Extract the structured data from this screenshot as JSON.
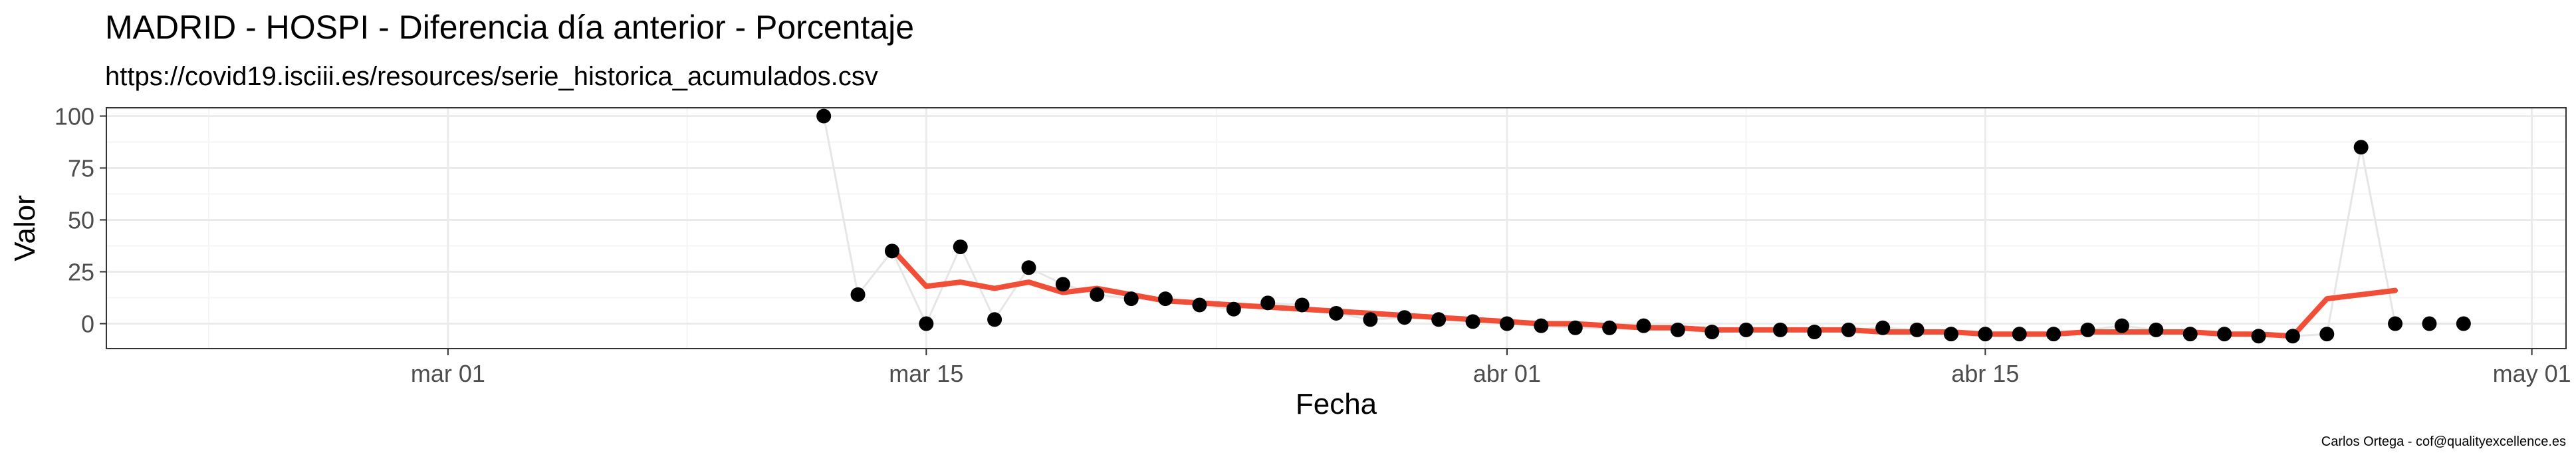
{
  "chart_data": {
    "type": "scatter",
    "title": "MADRID - HOSPI - Diferencia día anterior - Porcentaje",
    "subtitle": "https://covid19.isciii.es/resources/serie_historica_acumulados.csv",
    "xlabel": "Fecha",
    "ylabel": "Valor",
    "caption": "Carlos Ortega - cof@qualityexcellence.es",
    "xlim": [
      "2020-02-20",
      "2020-05-02"
    ],
    "ylim": [
      -12,
      104
    ],
    "x_ticks": [
      {
        "date": "2020-03-01",
        "label": "mar 01"
      },
      {
        "date": "2020-03-15",
        "label": "mar 15"
      },
      {
        "date": "2020-04-01",
        "label": "abr 01"
      },
      {
        "date": "2020-04-15",
        "label": "abr 15"
      },
      {
        "date": "2020-05-01",
        "label": "may 01"
      }
    ],
    "y_ticks": [
      0,
      25,
      50,
      75,
      100
    ],
    "grid": true,
    "colors": {
      "points": "#000000",
      "connector": "#e6e6e6",
      "smooth": "#f04e37",
      "panel_border": "#333333",
      "grid_major": "#ebebeb",
      "grid_minor": "#f5f5f5"
    },
    "points": [
      {
        "x": "2020-03-12",
        "y": 100
      },
      {
        "x": "2020-03-13",
        "y": 14
      },
      {
        "x": "2020-03-14",
        "y": 35
      },
      {
        "x": "2020-03-15",
        "y": 0
      },
      {
        "x": "2020-03-16",
        "y": 37
      },
      {
        "x": "2020-03-17",
        "y": 2
      },
      {
        "x": "2020-03-18",
        "y": 27
      },
      {
        "x": "2020-03-19",
        "y": 19
      },
      {
        "x": "2020-03-20",
        "y": 14
      },
      {
        "x": "2020-03-21",
        "y": 12
      },
      {
        "x": "2020-03-22",
        "y": 12
      },
      {
        "x": "2020-03-23",
        "y": 9
      },
      {
        "x": "2020-03-24",
        "y": 7
      },
      {
        "x": "2020-03-25",
        "y": 10
      },
      {
        "x": "2020-03-26",
        "y": 9
      },
      {
        "x": "2020-03-27",
        "y": 5
      },
      {
        "x": "2020-03-28",
        "y": 2
      },
      {
        "x": "2020-03-29",
        "y": 3
      },
      {
        "x": "2020-03-30",
        "y": 2
      },
      {
        "x": "2020-03-31",
        "y": 1
      },
      {
        "x": "2020-04-01",
        "y": 0
      },
      {
        "x": "2020-04-02",
        "y": -1
      },
      {
        "x": "2020-04-03",
        "y": -2
      },
      {
        "x": "2020-04-04",
        "y": -2
      },
      {
        "x": "2020-04-05",
        "y": -1
      },
      {
        "x": "2020-04-06",
        "y": -3
      },
      {
        "x": "2020-04-07",
        "y": -4
      },
      {
        "x": "2020-04-08",
        "y": -3
      },
      {
        "x": "2020-04-09",
        "y": -3
      },
      {
        "x": "2020-04-10",
        "y": -4
      },
      {
        "x": "2020-04-11",
        "y": -3
      },
      {
        "x": "2020-04-12",
        "y": -2
      },
      {
        "x": "2020-04-13",
        "y": -3
      },
      {
        "x": "2020-04-14",
        "y": -5
      },
      {
        "x": "2020-04-15",
        "y": -5
      },
      {
        "x": "2020-04-16",
        "y": -5
      },
      {
        "x": "2020-04-17",
        "y": -5
      },
      {
        "x": "2020-04-18",
        "y": -3
      },
      {
        "x": "2020-04-19",
        "y": -1
      },
      {
        "x": "2020-04-20",
        "y": -3
      },
      {
        "x": "2020-04-21",
        "y": -5
      },
      {
        "x": "2020-04-22",
        "y": -5
      },
      {
        "x": "2020-04-23",
        "y": -6
      },
      {
        "x": "2020-04-24",
        "y": -6
      },
      {
        "x": "2020-04-25",
        "y": -5
      },
      {
        "x": "2020-04-26",
        "y": 85
      },
      {
        "x": "2020-04-27",
        "y": 0
      },
      {
        "x": "2020-04-28",
        "y": 0
      },
      {
        "x": "2020-04-29",
        "y": 0
      }
    ],
    "smooth": [
      {
        "x": "2020-03-14",
        "y": 36
      },
      {
        "x": "2020-03-15",
        "y": 18
      },
      {
        "x": "2020-03-16",
        "y": 20
      },
      {
        "x": "2020-03-17",
        "y": 17
      },
      {
        "x": "2020-03-18",
        "y": 20
      },
      {
        "x": "2020-03-19",
        "y": 15
      },
      {
        "x": "2020-03-20",
        "y": 17
      },
      {
        "x": "2020-03-21",
        "y": 14
      },
      {
        "x": "2020-03-22",
        "y": 11
      },
      {
        "x": "2020-03-23",
        "y": 10
      },
      {
        "x": "2020-03-24",
        "y": 9
      },
      {
        "x": "2020-03-25",
        "y": 8
      },
      {
        "x": "2020-03-26",
        "y": 7
      },
      {
        "x": "2020-03-27",
        "y": 6
      },
      {
        "x": "2020-03-28",
        "y": 5
      },
      {
        "x": "2020-03-29",
        "y": 4
      },
      {
        "x": "2020-03-30",
        "y": 3
      },
      {
        "x": "2020-03-31",
        "y": 2
      },
      {
        "x": "2020-04-01",
        "y": 1
      },
      {
        "x": "2020-04-02",
        "y": 0
      },
      {
        "x": "2020-04-03",
        "y": 0
      },
      {
        "x": "2020-04-04",
        "y": -1
      },
      {
        "x": "2020-04-05",
        "y": -2
      },
      {
        "x": "2020-04-06",
        "y": -2
      },
      {
        "x": "2020-04-07",
        "y": -3
      },
      {
        "x": "2020-04-08",
        "y": -3
      },
      {
        "x": "2020-04-09",
        "y": -3
      },
      {
        "x": "2020-04-10",
        "y": -3
      },
      {
        "x": "2020-04-11",
        "y": -3
      },
      {
        "x": "2020-04-12",
        "y": -4
      },
      {
        "x": "2020-04-13",
        "y": -4
      },
      {
        "x": "2020-04-14",
        "y": -4
      },
      {
        "x": "2020-04-15",
        "y": -5
      },
      {
        "x": "2020-04-16",
        "y": -5
      },
      {
        "x": "2020-04-17",
        "y": -5
      },
      {
        "x": "2020-04-18",
        "y": -4
      },
      {
        "x": "2020-04-19",
        "y": -4
      },
      {
        "x": "2020-04-20",
        "y": -4
      },
      {
        "x": "2020-04-21",
        "y": -4
      },
      {
        "x": "2020-04-22",
        "y": -5
      },
      {
        "x": "2020-04-23",
        "y": -5
      },
      {
        "x": "2020-04-24",
        "y": -6
      },
      {
        "x": "2020-04-25",
        "y": 12
      },
      {
        "x": "2020-04-26",
        "y": 14
      },
      {
        "x": "2020-04-27",
        "y": 16
      }
    ]
  }
}
